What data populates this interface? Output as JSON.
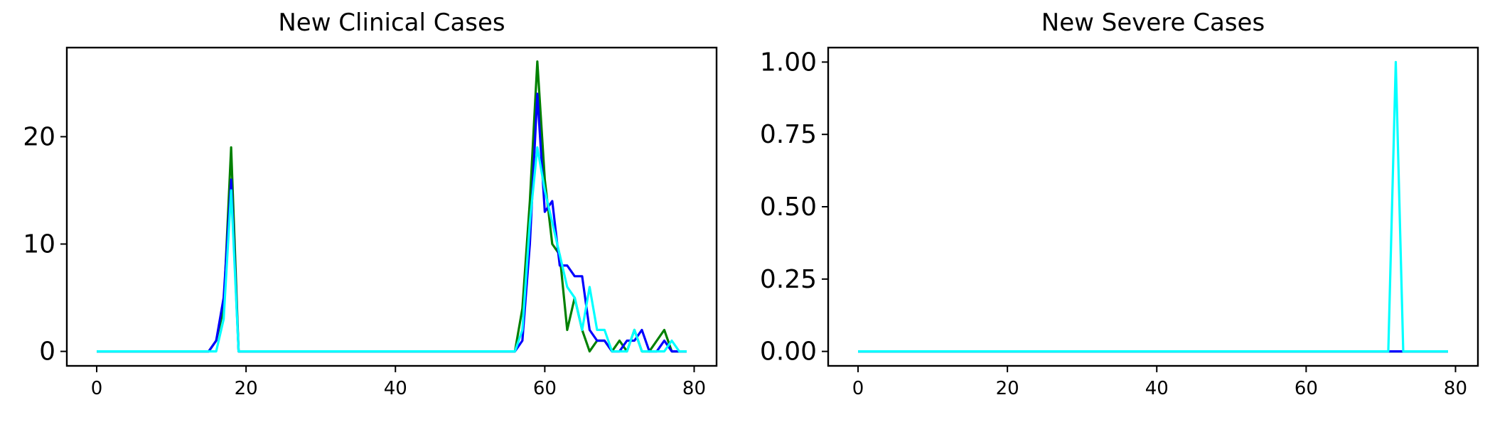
{
  "chart_data": [
    {
      "type": "line",
      "title": "New Clinical Cases",
      "xlabel": "",
      "ylabel": "",
      "xlim": [
        -4,
        83
      ],
      "ylim": [
        -1.35,
        28.3
      ],
      "xticks": [
        0,
        20,
        40,
        60,
        80
      ],
      "yticks": [
        0,
        10,
        20
      ],
      "grid": false,
      "series": [
        {
          "color": "#008000",
          "x": [
            0,
            1,
            2,
            3,
            4,
            5,
            6,
            7,
            8,
            9,
            10,
            11,
            12,
            13,
            14,
            15,
            16,
            17,
            18,
            19,
            20,
            21,
            22,
            23,
            24,
            25,
            26,
            27,
            28,
            29,
            30,
            31,
            32,
            33,
            34,
            35,
            36,
            37,
            38,
            39,
            40,
            41,
            42,
            43,
            44,
            45,
            46,
            47,
            48,
            49,
            50,
            51,
            52,
            53,
            54,
            55,
            56,
            57,
            58,
            59,
            60,
            61,
            62,
            63,
            64,
            65,
            66,
            67,
            68,
            69,
            70,
            71,
            72,
            73,
            74,
            75,
            76,
            77,
            78,
            79
          ],
          "values": [
            0,
            0,
            0,
            0,
            0,
            0,
            0,
            0,
            0,
            0,
            0,
            0,
            0,
            0,
            0,
            0,
            1,
            4,
            19,
            0,
            0,
            0,
            0,
            0,
            0,
            0,
            0,
            0,
            0,
            0,
            0,
            0,
            0,
            0,
            0,
            0,
            0,
            0,
            0,
            0,
            0,
            0,
            0,
            0,
            0,
            0,
            0,
            0,
            0,
            0,
            0,
            0,
            0,
            0,
            0,
            0,
            0,
            4,
            14,
            27,
            16,
            10,
            9,
            2,
            5,
            2,
            0,
            1,
            1,
            0,
            1,
            0,
            2,
            0,
            0,
            1,
            2,
            0,
            0,
            0
          ]
        },
        {
          "color": "#0000ff",
          "x": [
            0,
            1,
            2,
            3,
            4,
            5,
            6,
            7,
            8,
            9,
            10,
            11,
            12,
            13,
            14,
            15,
            16,
            17,
            18,
            19,
            20,
            21,
            22,
            23,
            24,
            25,
            26,
            27,
            28,
            29,
            30,
            31,
            32,
            33,
            34,
            35,
            36,
            37,
            38,
            39,
            40,
            41,
            42,
            43,
            44,
            45,
            46,
            47,
            48,
            49,
            50,
            51,
            52,
            53,
            54,
            55,
            56,
            57,
            58,
            59,
            60,
            61,
            62,
            63,
            64,
            65,
            66,
            67,
            68,
            69,
            70,
            71,
            72,
            73,
            74,
            75,
            76,
            77,
            78,
            79
          ],
          "values": [
            0,
            0,
            0,
            0,
            0,
            0,
            0,
            0,
            0,
            0,
            0,
            0,
            0,
            0,
            0,
            0,
            1,
            5,
            16,
            0,
            0,
            0,
            0,
            0,
            0,
            0,
            0,
            0,
            0,
            0,
            0,
            0,
            0,
            0,
            0,
            0,
            0,
            0,
            0,
            0,
            0,
            0,
            0,
            0,
            0,
            0,
            0,
            0,
            0,
            0,
            0,
            0,
            0,
            0,
            0,
            0,
            0,
            1,
            10,
            24,
            13,
            14,
            8,
            8,
            7,
            7,
            2,
            1,
            1,
            0,
            0,
            1,
            1,
            2,
            0,
            0,
            1,
            0,
            0,
            0
          ]
        },
        {
          "color": "#00ffff",
          "x": [
            0,
            1,
            2,
            3,
            4,
            5,
            6,
            7,
            8,
            9,
            10,
            11,
            12,
            13,
            14,
            15,
            16,
            17,
            18,
            19,
            20,
            21,
            22,
            23,
            24,
            25,
            26,
            27,
            28,
            29,
            30,
            31,
            32,
            33,
            34,
            35,
            36,
            37,
            38,
            39,
            40,
            41,
            42,
            43,
            44,
            45,
            46,
            47,
            48,
            49,
            50,
            51,
            52,
            53,
            54,
            55,
            56,
            57,
            58,
            59,
            60,
            61,
            62,
            63,
            64,
            65,
            66,
            67,
            68,
            69,
            70,
            71,
            72,
            73,
            74,
            75,
            76,
            77,
            78,
            79
          ],
          "values": [
            0,
            0,
            0,
            0,
            0,
            0,
            0,
            0,
            0,
            0,
            0,
            0,
            0,
            0,
            0,
            0,
            0,
            3,
            15,
            0,
            0,
            0,
            0,
            0,
            0,
            0,
            0,
            0,
            0,
            0,
            0,
            0,
            0,
            0,
            0,
            0,
            0,
            0,
            0,
            0,
            0,
            0,
            0,
            0,
            0,
            0,
            0,
            0,
            0,
            0,
            0,
            0,
            0,
            0,
            0,
            0,
            0,
            2,
            12,
            19,
            15,
            12,
            9,
            6,
            5,
            2,
            6,
            2,
            2,
            0,
            0,
            0,
            2,
            0,
            0,
            0,
            0,
            1,
            0,
            0
          ]
        }
      ]
    },
    {
      "type": "line",
      "title": "New Severe Cases",
      "xlabel": "",
      "ylabel": "",
      "xlim": [
        -4,
        83
      ],
      "ylim": [
        -0.05,
        1.05
      ],
      "xticks": [
        0,
        20,
        40,
        60,
        80
      ],
      "yticks": [
        "0.00",
        "0.25",
        "0.50",
        "0.75",
        "1.00"
      ],
      "grid": false,
      "series": [
        {
          "color": "#008000",
          "x": [
            0,
            79
          ],
          "values": [
            0,
            0
          ]
        },
        {
          "color": "#0000ff",
          "x": [
            0,
            79
          ],
          "values": [
            0,
            0
          ]
        },
        {
          "color": "#00ffff",
          "x": [
            0,
            1,
            2,
            3,
            4,
            5,
            6,
            7,
            8,
            9,
            10,
            11,
            12,
            13,
            14,
            15,
            16,
            17,
            18,
            19,
            20,
            21,
            22,
            23,
            24,
            25,
            26,
            27,
            28,
            29,
            30,
            31,
            32,
            33,
            34,
            35,
            36,
            37,
            38,
            39,
            40,
            41,
            42,
            43,
            44,
            45,
            46,
            47,
            48,
            49,
            50,
            51,
            52,
            53,
            54,
            55,
            56,
            57,
            58,
            59,
            60,
            61,
            62,
            63,
            64,
            65,
            66,
            67,
            68,
            69,
            70,
            71,
            72,
            73,
            74,
            75,
            76,
            77,
            78,
            79
          ],
          "values": [
            0,
            0,
            0,
            0,
            0,
            0,
            0,
            0,
            0,
            0,
            0,
            0,
            0,
            0,
            0,
            0,
            0,
            0,
            0,
            0,
            0,
            0,
            0,
            0,
            0,
            0,
            0,
            0,
            0,
            0,
            0,
            0,
            0,
            0,
            0,
            0,
            0,
            0,
            0,
            0,
            0,
            0,
            0,
            0,
            0,
            0,
            0,
            0,
            0,
            0,
            0,
            0,
            0,
            0,
            0,
            0,
            0,
            0,
            0,
            0,
            0,
            0,
            0,
            0,
            0,
            0,
            0,
            0,
            0,
            0,
            0,
            0,
            1,
            0,
            0,
            0,
            0,
            0,
            0,
            0
          ]
        }
      ]
    }
  ]
}
